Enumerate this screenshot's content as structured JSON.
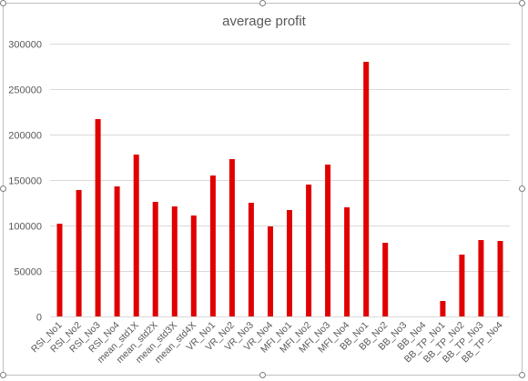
{
  "chart_data": {
    "type": "bar",
    "title": "average profit",
    "xlabel": "",
    "ylabel": "",
    "ylim": [
      0,
      300000
    ],
    "yticks": [
      0,
      50000,
      100000,
      150000,
      200000,
      250000,
      300000
    ],
    "ytick_labels": [
      "0",
      "50000",
      "100000",
      "150000",
      "200000",
      "250000",
      "300000"
    ],
    "grid": true,
    "legend": "none",
    "bar_color": "#e00000",
    "categories": [
      "RSI_No1",
      "RSI_No2",
      "RSI_No3",
      "RSI_No4",
      "mean_std1X",
      "mean_std2X",
      "mean_std3X",
      "mean_std4X",
      "VR_No1",
      "VR_No2",
      "VR_No3",
      "VR_No4",
      "MFI_No1",
      "MFI_No2",
      "MFI_No3",
      "MFI_No4",
      "BB_No1",
      "BB_No2",
      "BB_No3",
      "BB_No4",
      "BB_TP_No1",
      "BB_TP_No2",
      "BB_TP_No3",
      "BB_TP_No4"
    ],
    "values": [
      102000,
      139000,
      217000,
      143000,
      178000,
      126000,
      121000,
      111000,
      155000,
      173000,
      125000,
      99000,
      117000,
      145000,
      167000,
      120000,
      280000,
      81000,
      0,
      0,
      17000,
      68000,
      84000,
      83000
    ]
  }
}
